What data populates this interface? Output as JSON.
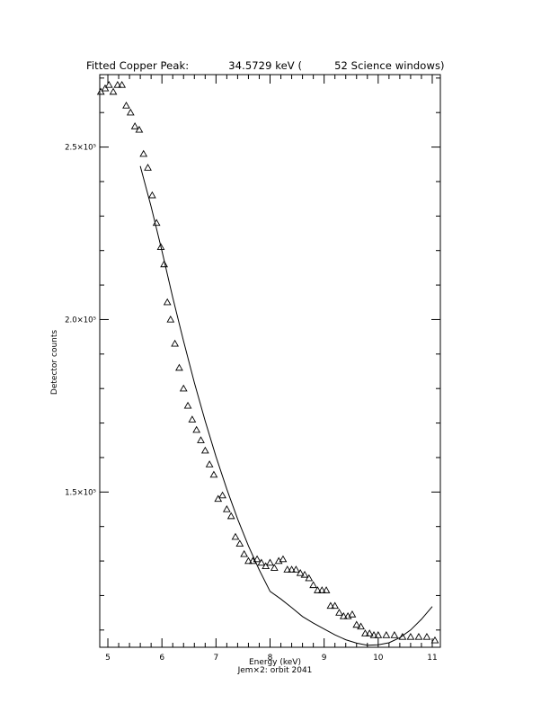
{
  "chart_data": {
    "type": "scatter",
    "title_parts": {
      "label": "Fitted Copper Peak:",
      "value": "34.5729 keV (",
      "windows": "52 Science windows)"
    },
    "xlabel": "Energy (keV)",
    "subtitle": "Jem×2: orbit 2041",
    "ylabel": "Detector counts",
    "xlim": [
      4.85,
      11.15
    ],
    "ylim": [
      105000,
      271000
    ],
    "x_ticks": [
      5,
      6,
      7,
      8,
      9,
      10,
      11
    ],
    "y_ticks_major": [
      {
        "value": 150000,
        "label": "1.5×10⁵"
      },
      {
        "value": 200000,
        "label": "2.0×10⁵"
      },
      {
        "value": 250000,
        "label": "2.5×10⁵"
      }
    ],
    "y_ticks_minor": [
      110000,
      120000,
      130000,
      140000,
      160000,
      170000,
      180000,
      190000,
      210000,
      220000,
      230000,
      240000,
      260000,
      270000
    ],
    "series": [
      {
        "marker": "triangle",
        "x": [
          4.87,
          4.95,
          5.02,
          5.1,
          5.18,
          5.26,
          5.34,
          5.42,
          5.5,
          5.58,
          5.66,
          5.74,
          5.82,
          5.9,
          5.98,
          6.04,
          6.1,
          6.16,
          6.24,
          6.32,
          6.4,
          6.48,
          6.56,
          6.64,
          6.72,
          6.8,
          6.88,
          6.96,
          7.04,
          7.12,
          7.2,
          7.28,
          7.36,
          7.44,
          7.52,
          7.6,
          7.68,
          7.76,
          7.84,
          7.92,
          8.0,
          8.08,
          8.16,
          8.24,
          8.32,
          8.4,
          8.48,
          8.56,
          8.64,
          8.72,
          8.8,
          8.88,
          8.96,
          9.04,
          9.12,
          9.2,
          9.28,
          9.36,
          9.44,
          9.52,
          9.6,
          9.68,
          9.76,
          9.84,
          9.92,
          10.0,
          10.15,
          10.3,
          10.45,
          10.6,
          10.75,
          10.9,
          11.05
        ],
        "y": [
          266000,
          267000,
          268000,
          266000,
          268000,
          268000,
          262000,
          260000,
          256000,
          255000,
          248000,
          244000,
          236000,
          228000,
          221000,
          216000,
          205000,
          200000,
          193000,
          186000,
          180000,
          175000,
          171000,
          168000,
          165000,
          162000,
          158000,
          155000,
          148000,
          149000,
          145000,
          143000,
          137000,
          135000,
          132000,
          130000,
          130000,
          130500,
          129500,
          128500,
          129500,
          128000,
          130000,
          130500,
          127500,
          127500,
          127500,
          126500,
          126000,
          125000,
          123000,
          121500,
          121500,
          121500,
          117000,
          117000,
          115000,
          114000,
          114000,
          114500,
          111500,
          111000,
          109000,
          109000,
          108500,
          108500,
          108500,
          108500,
          108000,
          108000,
          108000,
          108000,
          107000
        ]
      },
      {
        "marker": "line",
        "x": [
          5.6,
          5.8,
          6.0,
          6.2,
          6.4,
          6.6,
          6.8,
          7.0,
          7.2,
          7.4,
          7.6,
          7.8,
          8.0,
          8.2,
          8.4,
          8.6,
          8.8,
          9.0,
          9.2,
          9.4,
          9.6,
          9.8,
          10.0,
          10.2,
          10.4,
          10.6,
          10.8,
          11.0
        ],
        "y": [
          244500,
          232700,
          219900,
          206400,
          193800,
          181700,
          170600,
          160300,
          150800,
          142200,
          134400,
          127400,
          121200,
          119000,
          116500,
          113900,
          112000,
          110300,
          108600,
          107200,
          106200,
          105600,
          105700,
          106300,
          107800,
          110000,
          113100,
          116800
        ]
      }
    ]
  }
}
